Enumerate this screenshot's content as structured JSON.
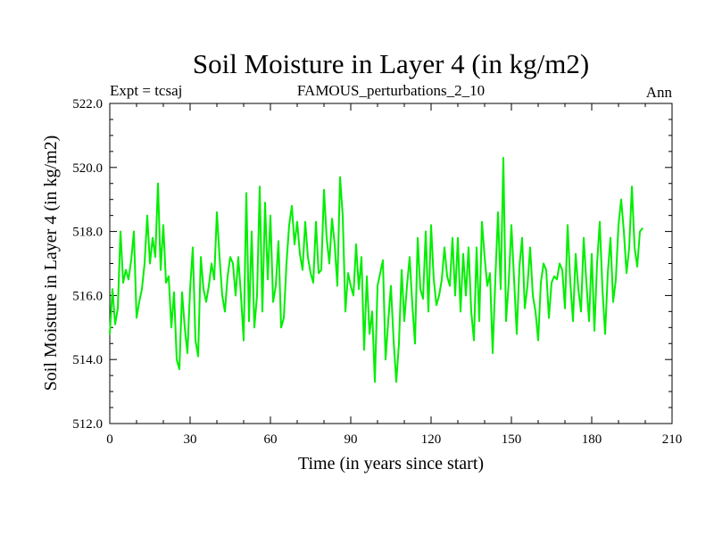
{
  "chart_data": {
    "type": "line",
    "title": "Soil Moisture in Layer 4 (in kg/m2)",
    "subtitle_left": "Expt = tcsaj",
    "subtitle_center": "FAMOUS_perturbations_2_10",
    "subtitle_right": "Ann",
    "xlabel": "Time (in years since start)",
    "ylabel": "Soil Moisture in Layer 4 (in kg/m2)",
    "xlim": [
      0,
      210
    ],
    "ylim": [
      512,
      522
    ],
    "xticks": [
      0,
      30,
      60,
      90,
      120,
      150,
      180,
      210
    ],
    "xtick_labels": [
      "0",
      "30",
      "60",
      "90",
      "120",
      "150",
      "180",
      "210"
    ],
    "yticks": [
      512,
      514,
      516,
      518,
      520,
      522
    ],
    "ytick_labels": [
      "512.0",
      "514.0",
      "516.0",
      "518.0",
      "520.0",
      "522.0"
    ],
    "line_color": "#00ee00",
    "series": [
      {
        "name": "Soil Moisture Layer 4",
        "x": [
          0,
          1,
          2,
          3,
          4,
          5,
          6,
          7,
          8,
          9,
          10,
          11,
          12,
          13,
          14,
          15,
          16,
          17,
          18,
          19,
          20,
          21,
          22,
          23,
          24,
          25,
          26,
          27,
          28,
          29,
          30,
          31,
          32,
          33,
          34,
          35,
          36,
          37,
          38,
          39,
          40,
          41,
          42,
          43,
          44,
          45,
          46,
          47,
          48,
          49,
          50,
          51,
          52,
          53,
          54,
          55,
          56,
          57,
          58,
          59,
          60,
          61,
          62,
          63,
          64,
          65,
          66,
          67,
          68,
          69,
          70,
          71,
          72,
          73,
          74,
          75,
          76,
          77,
          78,
          79,
          80,
          81,
          82,
          83,
          84,
          85,
          86,
          87,
          88,
          89,
          90,
          91,
          92,
          93,
          94,
          95,
          96,
          97,
          98,
          99,
          100,
          101,
          102,
          103,
          104,
          105,
          106,
          107,
          108,
          109,
          110,
          111,
          112,
          113,
          114,
          115,
          116,
          117,
          118,
          119,
          120,
          121,
          122,
          123,
          124,
          125,
          126,
          127,
          128,
          129,
          130,
          131,
          132,
          133,
          134,
          135,
          136,
          137,
          138,
          139,
          140,
          141,
          142,
          143,
          144,
          145,
          146,
          147,
          148,
          149,
          150,
          151,
          152,
          153,
          154,
          155,
          156,
          157,
          158,
          159,
          160,
          161,
          162,
          163,
          164,
          165,
          166,
          167,
          168,
          169,
          170,
          171,
          172,
          173,
          174,
          175,
          176,
          177,
          178,
          179,
          180,
          181,
          182,
          183,
          184,
          185,
          186,
          187,
          188,
          189,
          190,
          191,
          192,
          193,
          194,
          195,
          196,
          197,
          198,
          199
        ],
        "values": [
          514.8,
          516.2,
          515.1,
          515.6,
          518.0,
          516.4,
          516.8,
          516.5,
          517.1,
          518.0,
          515.3,
          515.8,
          516.2,
          517.0,
          518.5,
          517.0,
          517.8,
          517.2,
          519.5,
          516.8,
          518.2,
          516.4,
          516.6,
          515.0,
          516.1,
          514.0,
          513.7,
          516.1,
          515.0,
          514.2,
          516.2,
          517.5,
          514.6,
          514.1,
          517.2,
          516.2,
          515.8,
          516.3,
          517.0,
          516.5,
          518.6,
          517.2,
          516.0,
          515.5,
          516.6,
          517.2,
          517.0,
          516.0,
          517.2,
          516.0,
          514.6,
          519.2,
          515.2,
          518.0,
          515.0,
          516.0,
          519.4,
          515.5,
          518.9,
          516.5,
          518.5,
          515.8,
          516.3,
          517.7,
          515.0,
          515.3,
          517.0,
          518.2,
          518.8,
          517.6,
          518.3,
          517.3,
          516.8,
          518.3,
          517.2,
          516.7,
          516.4,
          518.3,
          516.7,
          516.8,
          519.3,
          517.8,
          517.0,
          518.4,
          517.6,
          516.3,
          519.7,
          518.5,
          515.5,
          516.7,
          516.3,
          516.0,
          517.6,
          516.2,
          517.2,
          514.3,
          516.6,
          514.8,
          515.5,
          513.3,
          516.3,
          516.7,
          517.1,
          514.0,
          515.2,
          516.3,
          514.6,
          513.3,
          514.5,
          516.8,
          515.2,
          516.3,
          517.2,
          515.7,
          514.5,
          517.8,
          516.2,
          515.9,
          518.0,
          515.5,
          518.2,
          516.5,
          515.7,
          516.0,
          516.5,
          517.5,
          516.6,
          516.3,
          517.8,
          516.0,
          517.8,
          515.5,
          517.3,
          516.0,
          517.5,
          515.5,
          514.6,
          517.5,
          515.2,
          518.3,
          517.2,
          516.3,
          516.7,
          514.2,
          516.5,
          518.6,
          516.2,
          520.3,
          515.2,
          516.4,
          518.2,
          516.5,
          514.8,
          516.9,
          517.8,
          515.6,
          516.3,
          517.5,
          516.0,
          515.5,
          514.6,
          516.4,
          517.0,
          516.8,
          515.3,
          516.4,
          516.6,
          516.5,
          517.0,
          516.8,
          515.6,
          518.2,
          516.4,
          515.2,
          517.3,
          516.2,
          515.5,
          517.8,
          516.4,
          515.2,
          517.3,
          514.9,
          517.0,
          518.3,
          516.2,
          514.8,
          516.7,
          517.8,
          515.8,
          516.5,
          518.2,
          519.0,
          518.0,
          516.7,
          517.5,
          519.4,
          517.5,
          516.9,
          518.0,
          518.1
        ]
      }
    ]
  }
}
